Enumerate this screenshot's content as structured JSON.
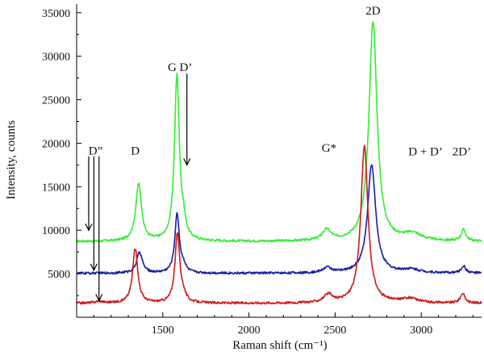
{
  "chart_data": {
    "type": "line",
    "title": "",
    "xlabel": "Raman shift (cm⁻¹)",
    "ylabel": "Intensity, counts",
    "xlim": [
      1000,
      3350
    ],
    "ylim": [
      0,
      36000
    ],
    "x_ticks": [
      1500,
      2000,
      2500,
      3000
    ],
    "y_ticks": [
      5000,
      10000,
      15000,
      20000,
      25000,
      30000,
      35000
    ],
    "x_tick_labels": [
      "1500",
      "2000",
      "2500",
      "3000"
    ],
    "y_tick_labels": [
      "5000",
      "10000",
      "15000",
      "20000",
      "25000",
      "30000",
      "35000"
    ],
    "grid": false,
    "series": [
      {
        "color": "#33ee33",
        "baseline": 8700,
        "peaks": [
          {
            "x": 1360,
            "height": 6600,
            "width": 20
          },
          {
            "x": 1582,
            "height": 19000,
            "width": 17
          },
          {
            "x": 1620,
            "height": 1500,
            "width": 15
          },
          {
            "x": 2450,
            "height": 1200,
            "width": 30
          },
          {
            "x": 2720,
            "height": 25300,
            "width": 28
          },
          {
            "x": 2950,
            "height": 800,
            "width": 60
          },
          {
            "x": 3245,
            "height": 1300,
            "width": 16
          }
        ]
      },
      {
        "color": "#1a1aaa",
        "baseline": 5050,
        "peaks": [
          {
            "x": 1365,
            "height": 2400,
            "width": 20
          },
          {
            "x": 1583,
            "height": 6800,
            "width": 16
          },
          {
            "x": 1620,
            "height": 700,
            "width": 15
          },
          {
            "x": 2455,
            "height": 600,
            "width": 30
          },
          {
            "x": 2712,
            "height": 12500,
            "width": 28
          },
          {
            "x": 2940,
            "height": 400,
            "width": 60
          },
          {
            "x": 3245,
            "height": 800,
            "width": 16
          }
        ]
      },
      {
        "color": "#cc1a1a",
        "baseline": 1600,
        "peaks": [
          {
            "x": 1130,
            "height": 200,
            "width": 30
          },
          {
            "x": 1340,
            "height": 6300,
            "width": 18
          },
          {
            "x": 1585,
            "height": 8000,
            "width": 17
          },
          {
            "x": 1620,
            "height": 600,
            "width": 15
          },
          {
            "x": 2460,
            "height": 900,
            "width": 30
          },
          {
            "x": 2670,
            "height": 18000,
            "width": 25
          },
          {
            "x": 2930,
            "height": 500,
            "width": 60
          },
          {
            "x": 3240,
            "height": 1100,
            "width": 16
          }
        ]
      }
    ],
    "annotations": [
      {
        "text": "D”",
        "x": 1110,
        "y": 18700
      },
      {
        "text": "D",
        "x": 1340,
        "y": 18700
      },
      {
        "text": "G D’",
        "x": 1600,
        "y": 28300
      },
      {
        "text": "G*",
        "x": 2465,
        "y": 19000
      },
      {
        "text": "2D",
        "x": 2720,
        "y": 34800
      },
      {
        "text": "D + D’",
        "x": 3025,
        "y": 18600
      },
      {
        "text": "2D’",
        "x": 3235,
        "y": 18600
      }
    ],
    "arrows": [
      {
        "x": 1070,
        "y_from": 18500,
        "y_to": 10000
      },
      {
        "x": 1100,
        "y_from": 18500,
        "y_to": 5400
      },
      {
        "x": 1130,
        "y_from": 18500,
        "y_to": 1900
      },
      {
        "x": 1640,
        "y_from": 28000,
        "y_to": 17500
      }
    ]
  }
}
